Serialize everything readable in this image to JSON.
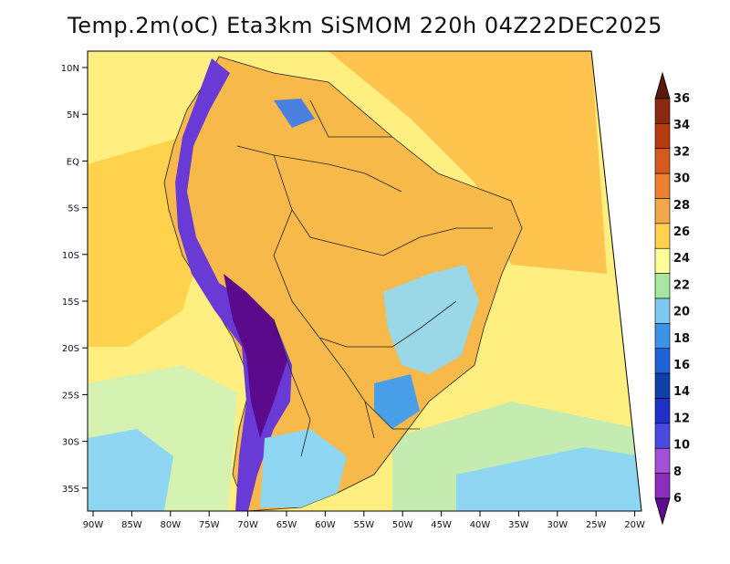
{
  "title": "Temp.2m(oC) Eta3km SiSMOM 220h 04Z22DEC2025",
  "map": {
    "lat_labels": [
      "10N",
      "5N",
      "EQ",
      "5S",
      "10S",
      "15S",
      "20S",
      "25S",
      "30S",
      "35S"
    ],
    "lon_labels": [
      "90W",
      "85W",
      "80W",
      "75W",
      "70W",
      "65W",
      "60W",
      "55W",
      "50W",
      "45W",
      "40W",
      "35W",
      "30W",
      "25W",
      "20W"
    ]
  },
  "colorbar": {
    "labels": [
      "6",
      "8",
      "10",
      "12",
      "14",
      "16",
      "18",
      "20",
      "22",
      "24",
      "26",
      "28",
      "30",
      "32",
      "34",
      "36"
    ],
    "colors": [
      "#5c0a8c",
      "#8a2dbf",
      "#a34fd6",
      "#4a4ae0",
      "#1f30c8",
      "#0f3fa8",
      "#1f62d6",
      "#3d92e8",
      "#7ec8f2",
      "#a6e6a0",
      "#ffff9a",
      "#ffd24d",
      "#f2a84a",
      "#ee8030",
      "#d65a20",
      "#b53a10",
      "#8a2a10",
      "#5a1808"
    ]
  }
}
